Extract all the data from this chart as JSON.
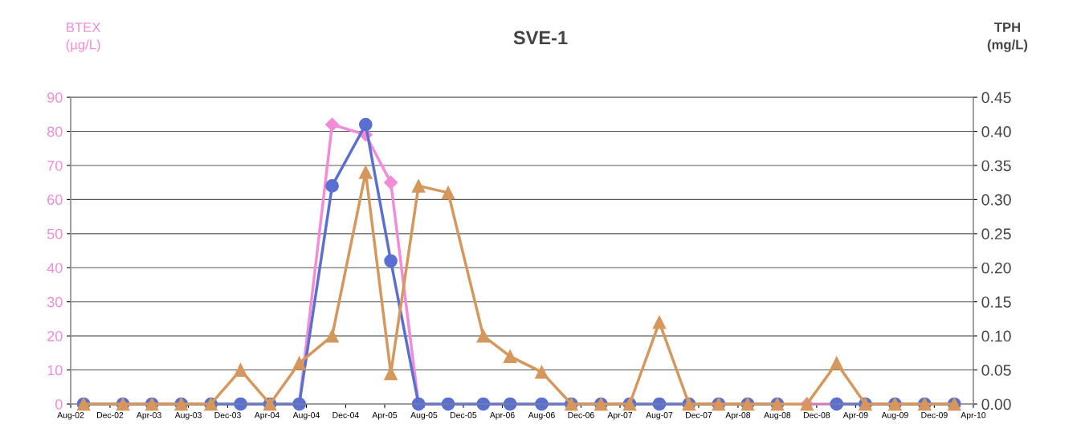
{
  "chart_data": {
    "type": "line",
    "title": "SVE-1",
    "ylabel": "BTEX\n(µg/L)",
    "y2label": "TPH\n(mg/L)",
    "x": [
      "2002-09-10",
      "2003-01-10",
      "2003-04-10",
      "2003-07-10",
      "2003-10-10",
      "2004-01-10",
      "2004-04-10",
      "2004-07-10",
      "2004-10-20",
      "2005-02-01",
      "2005-04-20",
      "2005-07-15",
      "2005-10-15",
      "2006-02-01",
      "2006-04-25",
      "2006-08-01",
      "2006-11-01",
      "2007-02-01",
      "2007-05-01",
      "2007-08-01",
      "2007-11-01",
      "2008-02-01",
      "2008-05-01",
      "2008-08-01",
      "2008-11-01",
      "2009-02-01",
      "2009-05-01",
      "2009-08-01",
      "2009-11-01",
      "2010-02-01"
    ],
    "series": [
      {
        "color": "#f28bd8",
        "marker": "diamond",
        "values": [
          null,
          null,
          null,
          null,
          null,
          null,
          null,
          0,
          82,
          79,
          65,
          0,
          null,
          null,
          null,
          null,
          null,
          null,
          null,
          null,
          null,
          null,
          null,
          null,
          0,
          0,
          null,
          null,
          null,
          null
        ]
      },
      {
        "color": "#5a6fcf",
        "marker": "circle",
        "values": [
          0,
          0,
          0,
          0,
          0,
          0,
          0,
          0,
          64,
          82,
          42,
          0,
          0,
          0,
          0,
          0,
          0,
          0,
          0,
          0,
          0,
          0,
          0,
          0,
          null,
          0,
          0,
          0,
          0,
          0
        ]
      },
      {
        "color": "#d6975c",
        "marker": "triangle",
        "axis": "y2",
        "values": [
          0,
          0,
          0,
          0,
          0,
          0.05,
          0,
          0.06,
          0.1,
          0.34,
          0.045,
          0.32,
          0.31,
          0.1,
          0.07,
          0.047,
          0,
          0,
          0,
          0.12,
          0,
          0,
          0,
          0,
          0,
          0.06,
          0,
          0,
          0,
          0
        ]
      }
    ],
    "xlim": [
      "2002-08-01",
      "2010-04-01"
    ],
    "xticks": [
      {
        "value": "2002-08-01",
        "label": "Aug-02"
      },
      {
        "value": "2002-12-01",
        "label": "Dec-02"
      },
      {
        "value": "2003-04-01",
        "label": "Apr-03"
      },
      {
        "value": "2003-08-01",
        "label": "Aug-03"
      },
      {
        "value": "2003-12-01",
        "label": "Dec-03"
      },
      {
        "value": "2004-04-01",
        "label": "Apr-04"
      },
      {
        "value": "2004-08-01",
        "label": "Aug-04"
      },
      {
        "value": "2004-12-01",
        "label": "Dec-04"
      },
      {
        "value": "2005-04-01",
        "label": "Apr-05"
      },
      {
        "value": "2005-08-01",
        "label": "Aug-05"
      },
      {
        "value": "2005-12-01",
        "label": "Dec-05"
      },
      {
        "value": "2006-04-01",
        "label": "Apr-06"
      },
      {
        "value": "2006-08-01",
        "label": "Aug-06"
      },
      {
        "value": "2006-12-01",
        "label": "Dec-06"
      },
      {
        "value": "2007-04-01",
        "label": "Apr-07"
      },
      {
        "value": "2007-08-01",
        "label": "Aug-07"
      },
      {
        "value": "2007-12-01",
        "label": "Dec-07"
      },
      {
        "value": "2008-04-01",
        "label": "Apr-08"
      },
      {
        "value": "2008-08-01",
        "label": "Aug-08"
      },
      {
        "value": "2008-12-01",
        "label": "Dec-08"
      },
      {
        "value": "2009-04-01",
        "label": "Apr-09"
      },
      {
        "value": "2009-08-01",
        "label": "Aug-09"
      },
      {
        "value": "2009-12-01",
        "label": "Dec-09"
      },
      {
        "value": "2010-04-01",
        "label": "Apr-10"
      }
    ],
    "ylim": [
      0,
      90
    ],
    "yticks": [
      0,
      10,
      20,
      30,
      40,
      50,
      60,
      70,
      80,
      90
    ],
    "y2lim": [
      0,
      0.45
    ],
    "y2ticks": [
      {
        "value": 0,
        "label": "0.00"
      },
      {
        "value": 0.05,
        "label": "0.05"
      },
      {
        "value": 0.1,
        "label": "0.10"
      },
      {
        "value": 0.15,
        "label": "0.15"
      },
      {
        "value": 0.2,
        "label": "0.20"
      },
      {
        "value": 0.25,
        "label": "0.25"
      },
      {
        "value": 0.3,
        "label": "0.30"
      },
      {
        "value": 0.35,
        "label": "0.35"
      },
      {
        "value": 0.4,
        "label": "0.40"
      },
      {
        "value": 0.45,
        "label": "0.45"
      }
    ],
    "grid": "y",
    "line_style": "solid",
    "legend": false
  }
}
